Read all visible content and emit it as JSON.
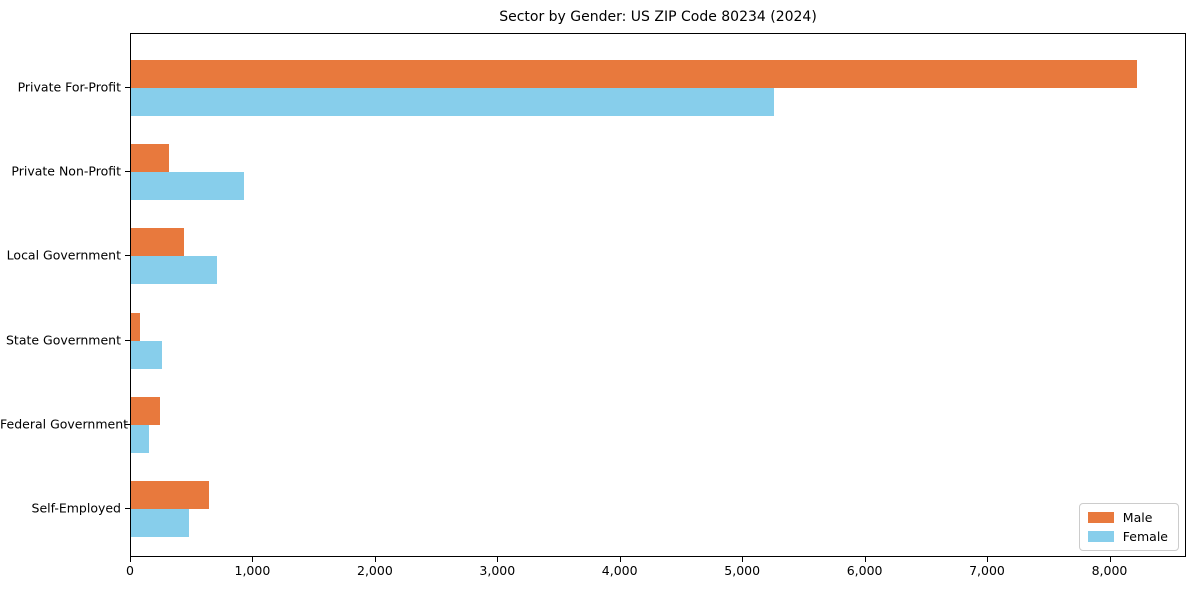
{
  "chart_data": {
    "type": "bar",
    "orientation": "horizontal",
    "title": "Sector by Gender: US ZIP Code 80234 (2024)",
    "categories": [
      "Private For-Profit",
      "Private Non-Profit",
      "Local Government",
      "State Government",
      "Federal Government",
      "Self-Employed"
    ],
    "series": [
      {
        "name": "Male",
        "color": "#E8793D",
        "values": [
          8220,
          310,
          430,
          75,
          240,
          640
        ]
      },
      {
        "name": "Female",
        "color": "#87CEEB",
        "values": [
          5255,
          925,
          700,
          255,
          145,
          470
        ]
      }
    ],
    "xlabel": "",
    "ylabel": "",
    "xlim": [
      0,
      8625
    ],
    "x_ticks": [
      0,
      1000,
      2000,
      3000,
      4000,
      5000,
      6000,
      7000,
      8000
    ],
    "x_tick_labels": [
      "0",
      "1,000",
      "2,000",
      "3,000",
      "4,000",
      "5,000",
      "6,000",
      "7,000",
      "8,000"
    ],
    "grid": false,
    "legend_position": "lower right"
  },
  "colors": {
    "male": "#E8793D",
    "female": "#87CEEB",
    "axis": "#000000",
    "legend_border": "#cccccc",
    "background": "#ffffff"
  }
}
